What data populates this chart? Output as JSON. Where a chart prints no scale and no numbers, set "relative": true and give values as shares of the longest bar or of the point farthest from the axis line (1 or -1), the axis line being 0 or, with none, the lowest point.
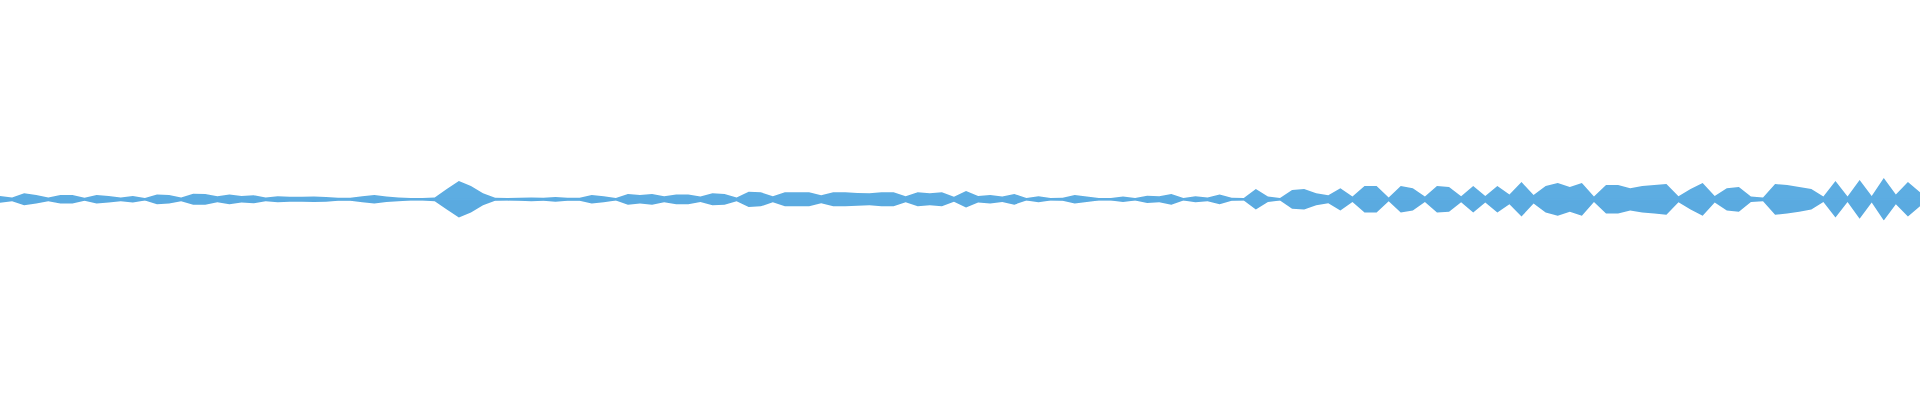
{
  "chart_data": {
    "type": "area",
    "relative": true,
    "categories": [
      null,
      null,
      null,
      null,
      null,
      null,
      null,
      null,
      null,
      null,
      null,
      null,
      null,
      null,
      null,
      null,
      null,
      null,
      null,
      null,
      null,
      null,
      null,
      null,
      null,
      null,
      null,
      null,
      null,
      null,
      null,
      null,
      null,
      null,
      null,
      null,
      null,
      null,
      null,
      null,
      null,
      null,
      null,
      null,
      null,
      null,
      null,
      null,
      null,
      null,
      null,
      null,
      null,
      null,
      null,
      null,
      null,
      null,
      null,
      null,
      null,
      null,
      null,
      null,
      null,
      null,
      null,
      null,
      null,
      null,
      null,
      null,
      null,
      null,
      null,
      null,
      null,
      null,
      null,
      null,
      null,
      null,
      null,
      null,
      null,
      null,
      null,
      null,
      null,
      null,
      null,
      null,
      null,
      null,
      null,
      null,
      null,
      null,
      null,
      null,
      null,
      null,
      null,
      null,
      null,
      null,
      null,
      null,
      null,
      null,
      null,
      null,
      null,
      null,
      null,
      null,
      null,
      null,
      null,
      null,
      null,
      null,
      null,
      null,
      null,
      null,
      null,
      null,
      null,
      null,
      null,
      null,
      null,
      null,
      null,
      null,
      null,
      null,
      null,
      null,
      null,
      null,
      null,
      null,
      null,
      null,
      null,
      null,
      null,
      null,
      null,
      null,
      null,
      null,
      null,
      null,
      null,
      null,
      null,
      null
    ],
    "series": [
      {
        "color": "#5dade2",
        "values": [
          0.16,
          0.09,
          0.28,
          0.2,
          0.09,
          0.2,
          0.2,
          0.07,
          0.2,
          0.15,
          0.09,
          0.15,
          0.06,
          0.23,
          0.2,
          0.09,
          0.26,
          0.25,
          0.14,
          0.23,
          0.15,
          0.19,
          0.09,
          0.14,
          0.12,
          0.12,
          0.13,
          0.11,
          0.07,
          0.07,
          0.14,
          0.2,
          0.13,
          0.09,
          0.06,
          0.06,
          0.09,
          0.48,
          0.86,
          0.62,
          0.28,
          0.07,
          0.06,
          0.07,
          0.09,
          0.07,
          0.11,
          0.07,
          0.07,
          0.2,
          0.14,
          0.06,
          0.25,
          0.2,
          0.25,
          0.14,
          0.23,
          0.23,
          0.13,
          0.28,
          0.25,
          0.09,
          0.36,
          0.33,
          0.14,
          0.33,
          0.33,
          0.33,
          0.19,
          0.33,
          0.33,
          0.3,
          0.28,
          0.33,
          0.33,
          0.14,
          0.33,
          0.28,
          0.33,
          0.12,
          0.39,
          0.15,
          0.2,
          0.13,
          0.25,
          0.06,
          0.14,
          0.06,
          0.07,
          0.2,
          0.13,
          0.06,
          0.06,
          0.13,
          0.06,
          0.17,
          0.14,
          0.25,
          0.06,
          0.14,
          0.09,
          0.23,
          0.07,
          0.06,
          0.48,
          0.13,
          0.06,
          0.44,
          0.48,
          0.28,
          0.19,
          0.52,
          0.13,
          0.62,
          0.62,
          0.09,
          0.62,
          0.52,
          0.13,
          0.62,
          0.58,
          0.14,
          0.62,
          0.15,
          0.62,
          0.23,
          0.81,
          0.2,
          0.62,
          0.77,
          0.58,
          0.77,
          0.13,
          0.67,
          0.67,
          0.52,
          0.62,
          0.67,
          0.72,
          0.14,
          0.48,
          0.77,
          0.15,
          0.52,
          0.58,
          0.13,
          0.09,
          0.72,
          0.67,
          0.58,
          0.48,
          0.13,
          0.86,
          0.13,
          0.91,
          0.15,
          1,
          0.23,
          0.81,
          0.33
        ]
      },
      {
        "color": "#5aaae0",
        "values": [
          -0.16,
          -0.09,
          -0.28,
          -0.2,
          -0.09,
          -0.2,
          -0.2,
          -0.07,
          -0.2,
          -0.15,
          -0.09,
          -0.15,
          -0.06,
          -0.23,
          -0.2,
          -0.09,
          -0.26,
          -0.25,
          -0.14,
          -0.23,
          -0.15,
          -0.19,
          -0.09,
          -0.14,
          -0.12,
          -0.12,
          -0.13,
          -0.11,
          -0.07,
          -0.07,
          -0.14,
          -0.2,
          -0.13,
          -0.09,
          -0.06,
          -0.06,
          -0.09,
          -0.48,
          -0.86,
          -0.62,
          -0.28,
          -0.07,
          -0.06,
          -0.07,
          -0.09,
          -0.07,
          -0.11,
          -0.07,
          -0.07,
          -0.2,
          -0.14,
          -0.06,
          -0.25,
          -0.2,
          -0.25,
          -0.14,
          -0.23,
          -0.23,
          -0.13,
          -0.28,
          -0.25,
          -0.09,
          -0.36,
          -0.33,
          -0.14,
          -0.33,
          -0.33,
          -0.33,
          -0.19,
          -0.33,
          -0.33,
          -0.3,
          -0.28,
          -0.33,
          -0.33,
          -0.14,
          -0.33,
          -0.28,
          -0.33,
          -0.12,
          -0.39,
          -0.15,
          -0.2,
          -0.13,
          -0.25,
          -0.06,
          -0.14,
          -0.06,
          -0.07,
          -0.2,
          -0.13,
          -0.06,
          -0.06,
          -0.13,
          -0.06,
          -0.17,
          -0.14,
          -0.25,
          -0.06,
          -0.14,
          -0.09,
          -0.23,
          -0.07,
          -0.06,
          -0.48,
          -0.13,
          -0.06,
          -0.44,
          -0.48,
          -0.28,
          -0.19,
          -0.52,
          -0.13,
          -0.62,
          -0.62,
          -0.09,
          -0.62,
          -0.52,
          -0.13,
          -0.62,
          -0.58,
          -0.14,
          -0.62,
          -0.15,
          -0.62,
          -0.23,
          -0.81,
          -0.2,
          -0.62,
          -0.77,
          -0.58,
          -0.77,
          -0.13,
          -0.67,
          -0.67,
          -0.52,
          -0.62,
          -0.67,
          -0.72,
          -0.14,
          -0.48,
          -0.77,
          -0.15,
          -0.52,
          -0.58,
          -0.13,
          -0.09,
          -0.72,
          -0.67,
          -0.58,
          -0.48,
          -0.13,
          -0.86,
          -0.13,
          -0.91,
          -0.15,
          -1,
          -0.23,
          -0.81,
          -0.33
        ]
      }
    ]
  }
}
